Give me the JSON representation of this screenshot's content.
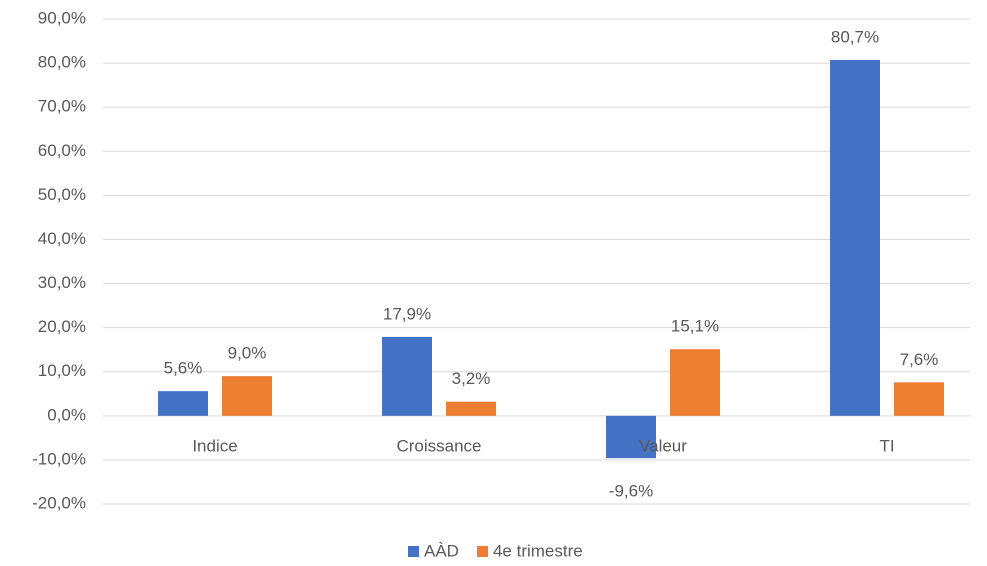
{
  "chart_data": {
    "type": "bar",
    "categories": [
      "Indice",
      "Croissance",
      "Valeur",
      "TI"
    ],
    "series": [
      {
        "name": "AÀD",
        "color": "#4472c4",
        "values": [
          5.6,
          17.9,
          -9.6,
          80.7
        ],
        "value_labels": [
          "5,6%",
          "17,9%",
          "-9,6%",
          "80,7%"
        ]
      },
      {
        "name": "4e trimestre",
        "color": "#ed7d31",
        "values": [
          9.0,
          3.2,
          15.1,
          7.6
        ],
        "value_labels": [
          "9,0%",
          "3,2%",
          "15,1%",
          "7,6%"
        ]
      }
    ],
    "ylim": [
      -20,
      90
    ],
    "yticks": [
      {
        "value": -20,
        "label": "-20,0%"
      },
      {
        "value": -10,
        "label": "-10,0%"
      },
      {
        "value": 0,
        "label": "0,0%"
      },
      {
        "value": 10,
        "label": "10,0%"
      },
      {
        "value": 20,
        "label": "20,0%"
      },
      {
        "value": 30,
        "label": "30,0%"
      },
      {
        "value": 40,
        "label": "40,0%"
      },
      {
        "value": 50,
        "label": "50,0%"
      },
      {
        "value": 60,
        "label": "60,0%"
      },
      {
        "value": 70,
        "label": "70,0%"
      },
      {
        "value": 80,
        "label": "80,0%"
      },
      {
        "value": 90,
        "label": "90,0%"
      }
    ],
    "grid": true,
    "legend": "bottom"
  }
}
